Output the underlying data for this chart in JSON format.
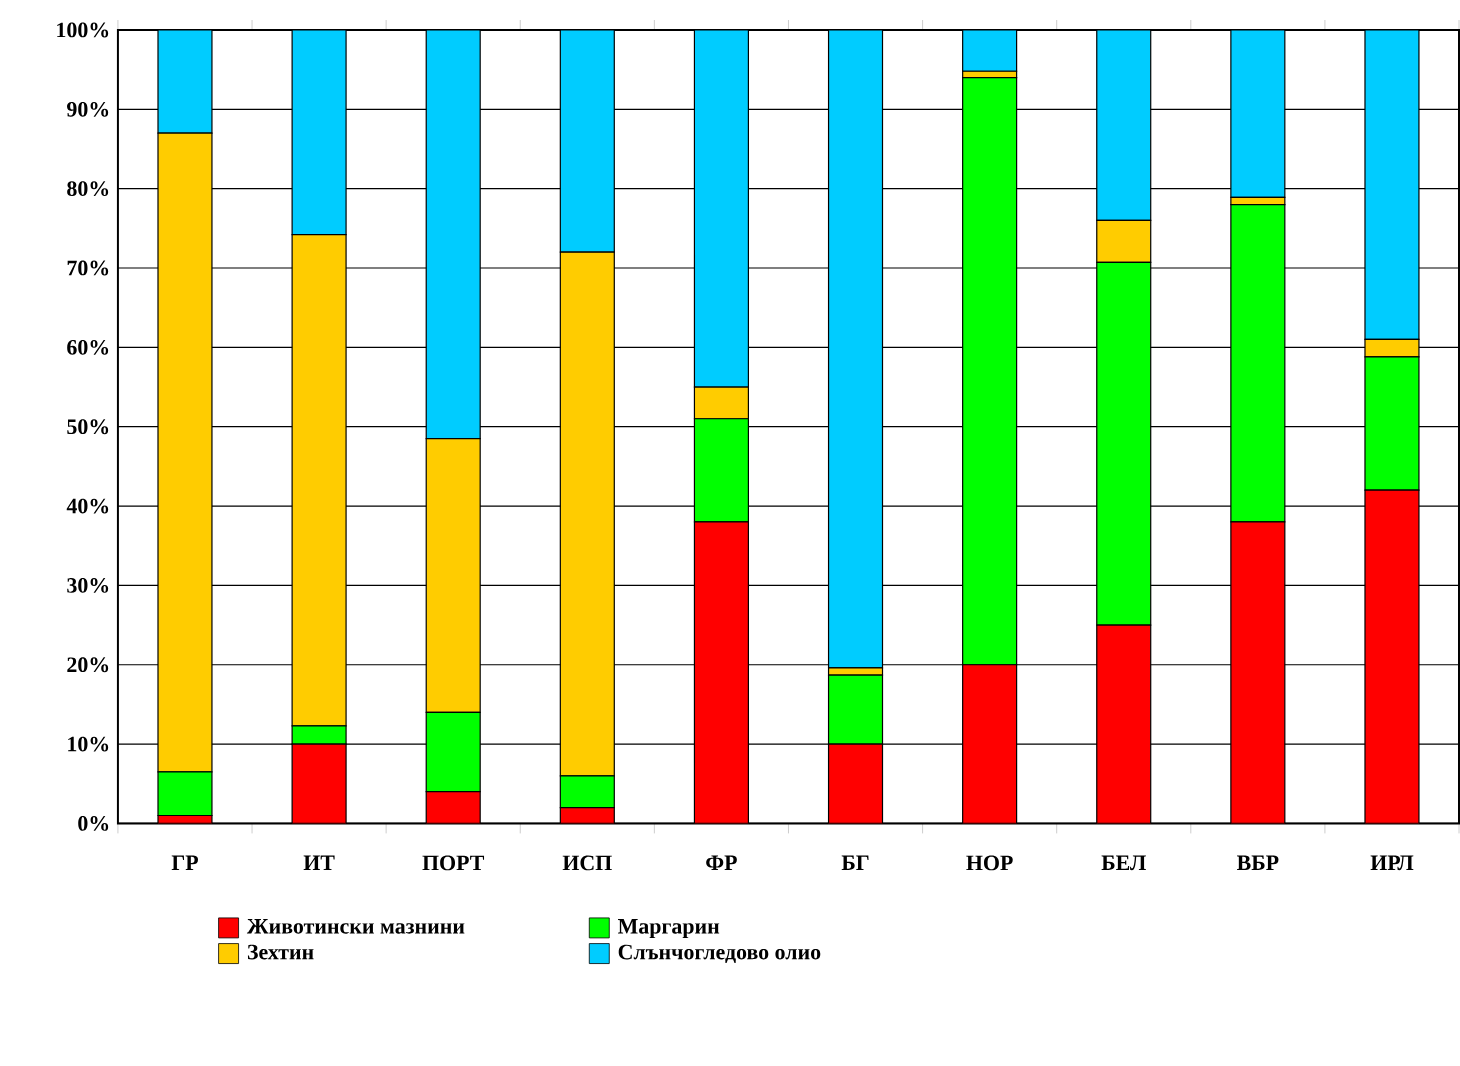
{
  "chart_data": {
    "type": "bar",
    "stacked": true,
    "grid": "y",
    "legend": "bottom",
    "categories": [
      "ГР",
      "ИТ",
      "ПОРТ",
      "ИСП",
      "ФР",
      "БГ",
      "НОР",
      "БЕЛ",
      "ВБР",
      "ИРЛ"
    ],
    "ylim": [
      0,
      100
    ],
    "yticks": [
      {
        "value": 0,
        "label": "0%"
      },
      {
        "value": 10,
        "label": "10%"
      },
      {
        "value": 20,
        "label": "20%"
      },
      {
        "value": 30,
        "label": "30%"
      },
      {
        "value": 40,
        "label": "40%"
      },
      {
        "value": 50,
        "label": "50%"
      },
      {
        "value": 60,
        "label": "60%"
      },
      {
        "value": 70,
        "label": "70%"
      },
      {
        "value": 80,
        "label": "80%"
      },
      {
        "value": 90,
        "label": "90%"
      },
      {
        "value": 100,
        "label": "100%"
      }
    ],
    "series": [
      {
        "name": "Животински мазнини",
        "color": "#ff0000",
        "values": [
          1,
          10,
          4,
          2,
          38,
          10,
          20,
          25,
          38,
          42
        ]
      },
      {
        "name": "Маргарин",
        "color": "#00ff00",
        "values": [
          5.5,
          2.3,
          10,
          4,
          13,
          8.7,
          74,
          45.7,
          40,
          16.8
        ]
      },
      {
        "name": "Зехтин",
        "color": "#ffcc00",
        "values": [
          80.5,
          61.9,
          34.5,
          66,
          4,
          0.9,
          0.8,
          5.3,
          0.9,
          2.2
        ]
      },
      {
        "name": "Слънчогледово олио",
        "color": "#00ccff",
        "values": [
          13,
          25.8,
          51.5,
          28,
          45,
          80.4,
          5.2,
          24,
          21.1,
          39
        ]
      }
    ]
  }
}
